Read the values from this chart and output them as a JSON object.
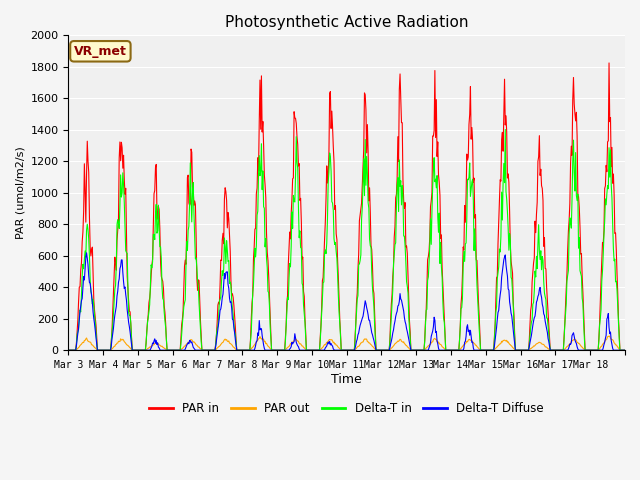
{
  "title": "Photosynthetic Active Radiation",
  "ylabel": "PAR (umol/m2/s)",
  "xlabel": "Time",
  "ylim": [
    0,
    2000
  ],
  "yticks": [
    0,
    200,
    400,
    600,
    800,
    1000,
    1200,
    1400,
    1600,
    1800,
    2000
  ],
  "legend_labels": [
    "PAR in",
    "PAR out",
    "Delta-T in",
    "Delta-T Diffuse"
  ],
  "colors": [
    "red",
    "orange",
    "lime",
    "blue"
  ],
  "annotation_text": "VR_met",
  "annotation_color": "#8B0000",
  "annotation_bg": "#FFFACD",
  "annotation_border": "#8B6914",
  "background_color": "#e8e8e8",
  "plot_bg": "#f0f0f0",
  "xtick_labels": [
    "Mar 3",
    "Mar 4",
    "Mar 5",
    "Mar 6",
    "Mar 7",
    "Mar 8",
    "Mar 9",
    "Mar 10",
    "Mar 11",
    "Mar 12",
    "Mar 13",
    "Mar 14",
    "Mar 15",
    "Mar 16",
    "Mar 17",
    "Mar 18"
  ],
  "n_days": 16,
  "title_fontsize": 11
}
